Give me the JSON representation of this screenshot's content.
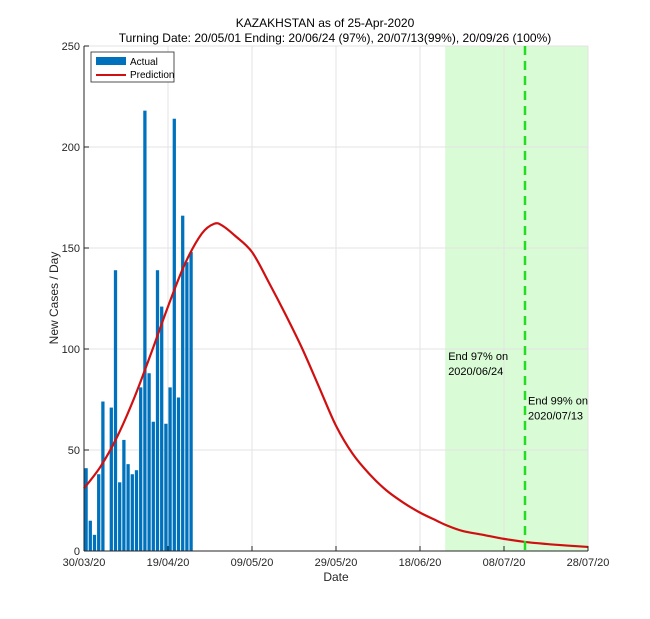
{
  "chart_data": {
    "type": "bar+line",
    "title": "KAZAKHSTAN as of 25-Apr-2020",
    "subtitle": "Turning Date: 20/05/01  Ending: 20/06/24 (97%), 20/07/13(99%), 20/09/26 (100%)",
    "xlabel": "Date",
    "ylabel": "New Cases / Day",
    "x_start": "2020-03-30",
    "x_end": "2020-07-28",
    "xlim_days": [
      0,
      120
    ],
    "ylim": [
      0,
      250
    ],
    "yticks": [
      0,
      50,
      100,
      150,
      200,
      250
    ],
    "xticks": [
      {
        "day": 0,
        "label": "30/03/20"
      },
      {
        "day": 20,
        "label": "19/04/20"
      },
      {
        "day": 40,
        "label": "09/05/20"
      },
      {
        "day": 60,
        "label": "29/05/20"
      },
      {
        "day": 80,
        "label": "18/06/20"
      },
      {
        "day": 100,
        "label": "08/07/20"
      },
      {
        "day": 120,
        "label": "28/07/20"
      }
    ],
    "grid": true,
    "legend": {
      "position": "top-left",
      "entries": [
        "Actual",
        "Prediction"
      ]
    },
    "series": [
      {
        "name": "Actual",
        "kind": "bar",
        "color": "#0072BD",
        "start_day": 0,
        "values": [
          41,
          15,
          8,
          38,
          74,
          0,
          71,
          139,
          34,
          55,
          43,
          38,
          40,
          81,
          218,
          88,
          64,
          139,
          121,
          63,
          81,
          214,
          76,
          166,
          143,
          148
        ]
      },
      {
        "name": "Prediction",
        "kind": "line",
        "color": "#D01010",
        "points": [
          [
            0,
            31
          ],
          [
            4,
            42
          ],
          [
            8,
            57
          ],
          [
            12,
            76
          ],
          [
            16,
            98
          ],
          [
            20,
            121
          ],
          [
            24,
            142
          ],
          [
            28,
            157
          ],
          [
            31,
            162
          ],
          [
            33,
            161
          ],
          [
            36,
            156
          ],
          [
            40,
            148
          ],
          [
            44,
            133
          ],
          [
            48,
            117
          ],
          [
            52,
            100
          ],
          [
            56,
            81
          ],
          [
            60,
            62
          ],
          [
            64,
            48
          ],
          [
            68,
            38
          ],
          [
            72,
            30
          ],
          [
            76,
            24
          ],
          [
            80,
            19
          ],
          [
            84,
            15
          ],
          [
            86,
            13
          ],
          [
            90,
            10
          ],
          [
            95,
            8
          ],
          [
            100,
            6
          ],
          [
            105,
            4.5
          ],
          [
            110,
            3.5
          ],
          [
            115,
            2.7
          ],
          [
            120,
            2
          ]
        ]
      }
    ],
    "shaded_region": {
      "from_day": 86,
      "to_day": 120,
      "color": "#D9FBD6"
    },
    "vertical_line": {
      "day": 105,
      "style": "dashed",
      "color": "#22DD22"
    },
    "annotations": [
      {
        "lines": [
          "End 97% on",
          "2020/06/24"
        ],
        "day": 86,
        "value": 88
      },
      {
        "lines": [
          "End 99% on",
          "2020/07/13"
        ],
        "day": 105,
        "value": 66
      }
    ]
  }
}
